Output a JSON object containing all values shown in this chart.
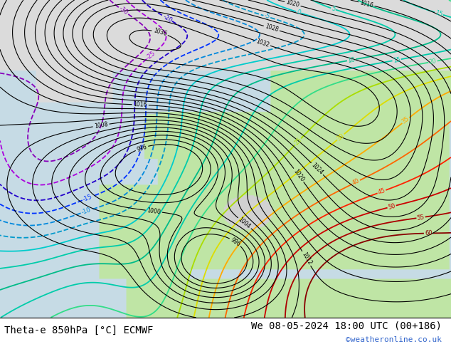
{
  "title_left": "Theta-e 850hPa [°C] ECMWF",
  "title_right": "We 08-05-2024 18:00 UTC (00+186)",
  "title_right2": "©weatheronline.co.uk",
  "bg_color": "#ffffff",
  "font_size_title": 10,
  "font_size_copy": 8,
  "theta_levels": [
    -30,
    -25,
    -20,
    -15,
    -10,
    -5,
    0,
    5,
    10,
    15,
    20,
    25,
    30,
    35,
    40,
    45,
    50,
    55,
    60
  ],
  "theta_colors": {
    "-30": "#8800bb",
    "-25": "#aa00dd",
    "-20": "#2200cc",
    "-15": "#0033ff",
    "-10": "#0088dd",
    "-5": "#0099cc",
    "0": "#00cccc",
    "5": "#00ccaa",
    "10": "#00bb88",
    "15": "#00ccaa",
    "20": "#33dd88",
    "25": "#aadd00",
    "30": "#dddd00",
    "35": "#ffaa00",
    "40": "#ff6600",
    "45": "#ff2200",
    "50": "#cc0000",
    "55": "#aa0000",
    "60": "#880000"
  },
  "pressure_color": "#000000",
  "label_fontsize": 6
}
